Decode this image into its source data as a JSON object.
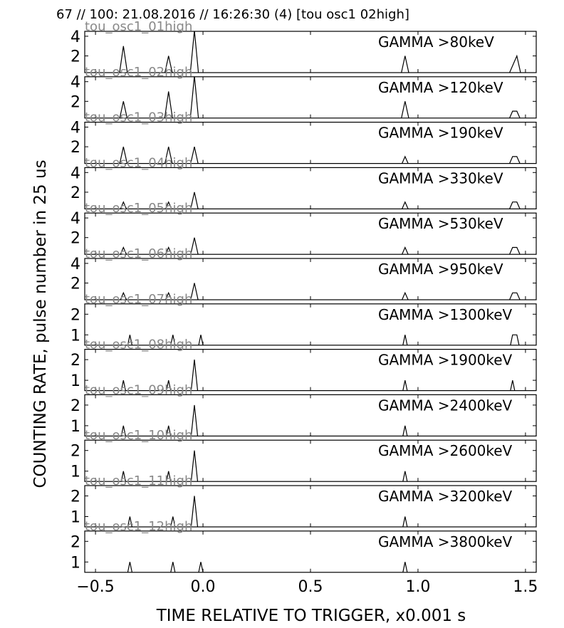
{
  "header": "67 // 100:   21.08.2016 // 16:26:30 (4)  [tou osc1 02high]",
  "ylabel": "COUNTING RATE,    pulse number in 25 us",
  "xlabel": "TIME RELATIVE TO TRIGGER,   x0.001 s",
  "chart_data": {
    "type": "line",
    "xlim": [
      -0.55,
      1.55
    ],
    "xticks": [
      -0.5,
      0.0,
      0.5,
      1.0,
      1.5
    ],
    "xtick_labels": [
      "−0.5",
      "0.0",
      "0.5",
      "1.0",
      "1.5"
    ],
    "panels": [
      {
        "label": "GAMMA >80keV",
        "channel": "tou_osc1_01high",
        "ylim": [
          0.3,
          4.5
        ],
        "yticks": [
          2,
          4
        ],
        "x": [
          -0.39,
          -0.37,
          -0.35,
          -0.18,
          -0.16,
          -0.14,
          -0.06,
          -0.04,
          -0.02,
          0.92,
          0.94,
          0.96,
          1.42,
          1.46,
          1.48
        ],
        "y": [
          0,
          3,
          0,
          0,
          2,
          0,
          0,
          4.6,
          0,
          0,
          2,
          0,
          0,
          2,
          0
        ]
      },
      {
        "label": "GAMMA >120keV",
        "channel": "tou_osc1_02high",
        "ylim": [
          0.3,
          4.5
        ],
        "yticks": [
          2,
          4
        ],
        "x": [
          -0.39,
          -0.37,
          -0.35,
          -0.18,
          -0.16,
          -0.14,
          -0.06,
          -0.04,
          -0.02,
          0.92,
          0.94,
          0.96,
          1.42,
          1.44,
          1.46,
          1.48
        ],
        "y": [
          0,
          2,
          0,
          0,
          3,
          0,
          0,
          4.6,
          0,
          0,
          2,
          0,
          0,
          1,
          1,
          0
        ]
      },
      {
        "label": "GAMMA >190keV",
        "channel": "tou_osc1_03high",
        "ylim": [
          0.3,
          4.5
        ],
        "yticks": [
          2,
          4
        ],
        "x": [
          -0.39,
          -0.37,
          -0.35,
          -0.18,
          -0.16,
          -0.14,
          -0.06,
          -0.04,
          -0.02,
          0.92,
          0.94,
          0.96,
          1.42,
          1.44,
          1.46,
          1.48
        ],
        "y": [
          0,
          2,
          0,
          0,
          2,
          0,
          0,
          2,
          0,
          0,
          1,
          0,
          0,
          1,
          1,
          0
        ]
      },
      {
        "label": "GAMMA >330keV",
        "channel": "tou_osc1_04high",
        "ylim": [
          0.3,
          4.5
        ],
        "yticks": [
          2,
          4
        ],
        "x": [
          -0.39,
          -0.37,
          -0.35,
          -0.18,
          -0.16,
          -0.14,
          -0.06,
          -0.04,
          -0.02,
          0.92,
          0.94,
          0.96,
          1.42,
          1.44,
          1.46,
          1.48
        ],
        "y": [
          0,
          1,
          0,
          0,
          1,
          0,
          0,
          2,
          0,
          0,
          1,
          0,
          0,
          1,
          1,
          0
        ]
      },
      {
        "label": "GAMMA >530keV",
        "channel": "tou_osc1_05high",
        "ylim": [
          0.3,
          4.5
        ],
        "yticks": [
          2,
          4
        ],
        "x": [
          -0.39,
          -0.37,
          -0.35,
          -0.18,
          -0.16,
          -0.14,
          -0.06,
          -0.04,
          -0.02,
          0.92,
          0.94,
          0.96,
          1.42,
          1.44,
          1.46,
          1.48
        ],
        "y": [
          0,
          1,
          0,
          0,
          1,
          0,
          0,
          2,
          0,
          0,
          1,
          0,
          0,
          1,
          1,
          0
        ]
      },
      {
        "label": "GAMMA >950keV",
        "channel": "tou_osc1_06high",
        "ylim": [
          0.3,
          4.5
        ],
        "yticks": [
          2,
          4
        ],
        "x": [
          -0.39,
          -0.37,
          -0.35,
          -0.18,
          -0.16,
          -0.14,
          -0.06,
          -0.04,
          -0.02,
          0.92,
          0.94,
          0.96,
          1.42,
          1.44,
          1.46,
          1.48
        ],
        "y": [
          0,
          1,
          0,
          0,
          1,
          0,
          0,
          2,
          0,
          0,
          1,
          0,
          0,
          1,
          1,
          0
        ]
      },
      {
        "label": "GAMMA >1300keV",
        "channel": "tou_osc1_07high",
        "ylim": [
          0.5,
          2.5
        ],
        "yticks": [
          1,
          2
        ],
        "x": [
          -0.36,
          -0.34,
          -0.32,
          -0.16,
          -0.14,
          -0.12,
          -0.03,
          -0.01,
          0.01,
          0.92,
          0.94,
          0.96,
          1.42,
          1.44,
          1.46,
          1.48
        ],
        "y": [
          0,
          1,
          0,
          0,
          1,
          0,
          0,
          1,
          0,
          0,
          1,
          0,
          0,
          1,
          1,
          0
        ]
      },
      {
        "label": "GAMMA >1900keV",
        "channel": "tou_osc1_08high",
        "ylim": [
          0.5,
          2.5
        ],
        "yticks": [
          1,
          2
        ],
        "x": [
          -0.39,
          -0.37,
          -0.35,
          -0.18,
          -0.16,
          -0.14,
          -0.06,
          -0.04,
          -0.02,
          0.92,
          0.94,
          0.96,
          1.42,
          1.44,
          1.46
        ],
        "y": [
          0,
          1,
          0,
          0,
          1,
          0,
          0,
          2,
          0,
          0,
          1,
          0,
          0,
          1,
          0
        ]
      },
      {
        "label": "GAMMA >2400keV",
        "channel": "tou_osc1_09high",
        "ylim": [
          0.5,
          2.5
        ],
        "yticks": [
          1,
          2
        ],
        "x": [
          -0.39,
          -0.37,
          -0.35,
          -0.18,
          -0.16,
          -0.14,
          -0.06,
          -0.04,
          -0.02,
          0.92,
          0.94,
          0.96
        ],
        "y": [
          0,
          1,
          0,
          0,
          1,
          0,
          0,
          2,
          0,
          0,
          1,
          0
        ]
      },
      {
        "label": "GAMMA >2600keV",
        "channel": "tou_osc1_10high",
        "ylim": [
          0.5,
          2.5
        ],
        "yticks": [
          1,
          2
        ],
        "x": [
          -0.39,
          -0.37,
          -0.35,
          -0.18,
          -0.16,
          -0.14,
          -0.06,
          -0.04,
          -0.02,
          0.92,
          0.94,
          0.96
        ],
        "y": [
          0,
          1,
          0,
          0,
          1,
          0,
          0,
          2,
          0,
          0,
          1,
          0
        ]
      },
      {
        "label": "GAMMA >3200keV",
        "channel": "tou_osc1_11high",
        "ylim": [
          0.5,
          2.5
        ],
        "yticks": [
          1,
          2
        ],
        "x": [
          -0.36,
          -0.34,
          -0.32,
          -0.16,
          -0.14,
          -0.12,
          -0.06,
          -0.04,
          -0.02,
          0.92,
          0.94,
          0.96
        ],
        "y": [
          0,
          1,
          0,
          0,
          1,
          0,
          0,
          2,
          0,
          0,
          1,
          0
        ]
      },
      {
        "label": "GAMMA >3800keV",
        "channel": "tou_osc1_12high",
        "ylim": [
          0.5,
          2.5
        ],
        "yticks": [
          1,
          2
        ],
        "x": [
          -0.36,
          -0.34,
          -0.32,
          -0.16,
          -0.14,
          -0.12,
          -0.03,
          -0.01,
          0.01,
          0.92,
          0.94,
          0.96
        ],
        "y": [
          0,
          1,
          0,
          0,
          1,
          0,
          0,
          1,
          0,
          0,
          1,
          0
        ]
      }
    ]
  }
}
